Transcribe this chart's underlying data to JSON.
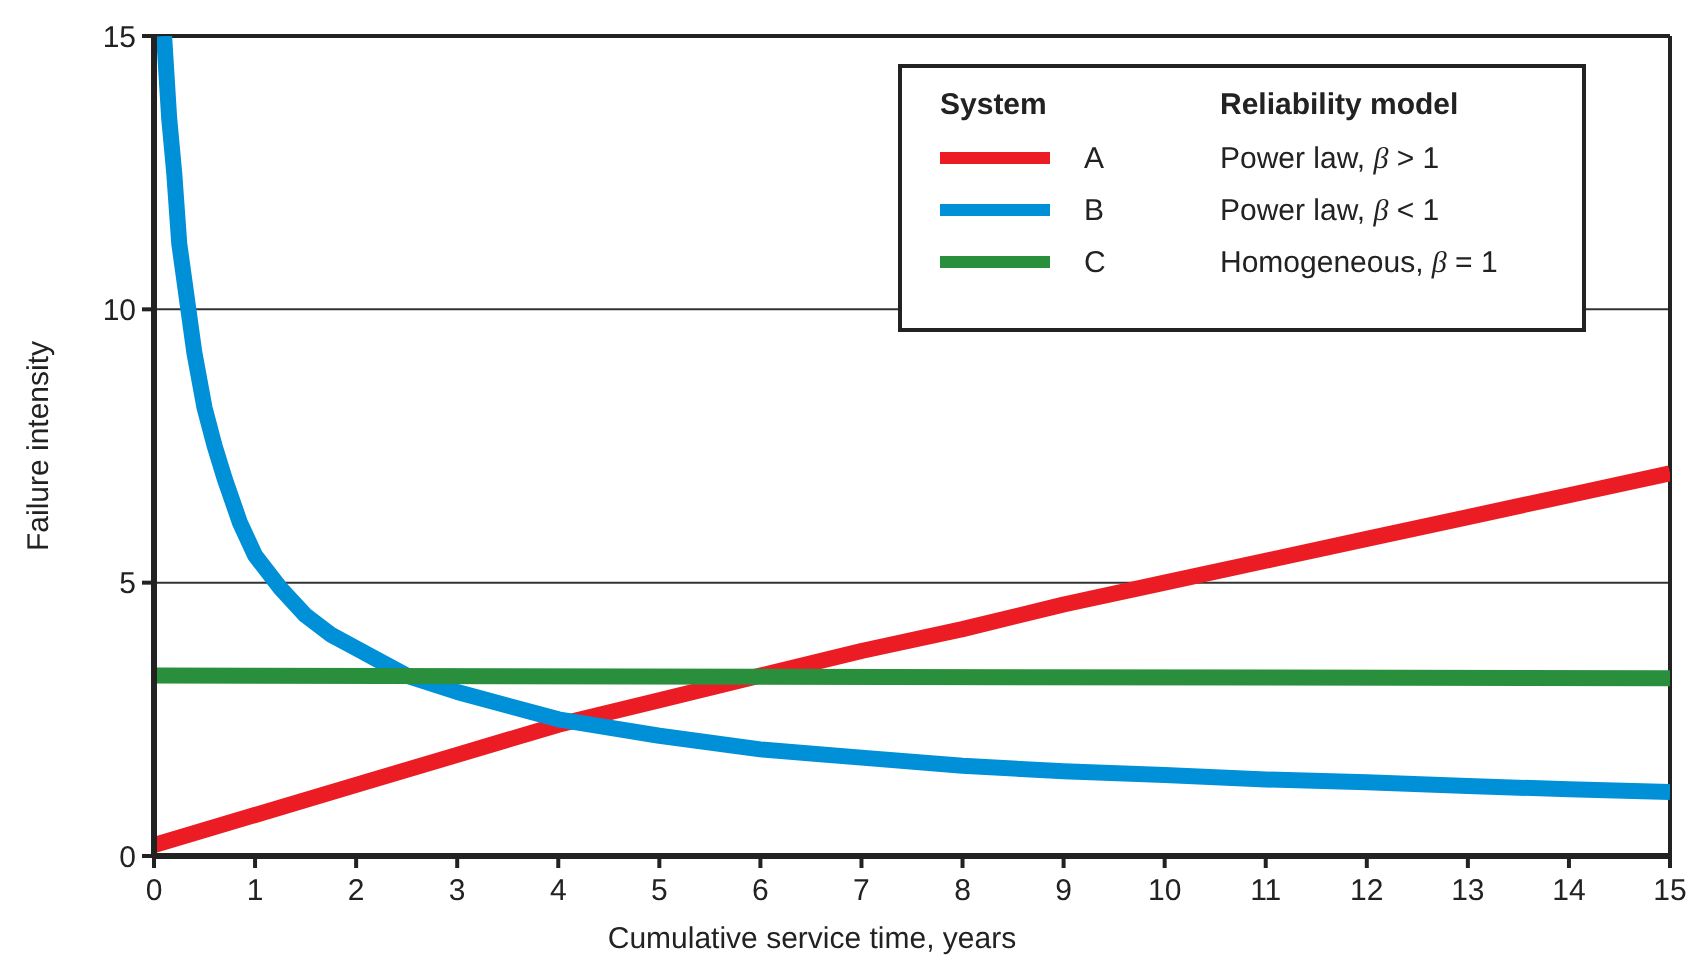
{
  "chart_data": {
    "type": "line",
    "xlabel": "Cumulative service time, years",
    "ylabel": "Failure intensity",
    "legend_title": "System",
    "legend": "top right",
    "grid": "y",
    "line_style": "solid",
    "marker": "none",
    "xlim": [
      0,
      15
    ],
    "xticks": [
      0,
      1,
      2,
      3,
      4,
      5,
      6,
      7,
      8,
      9,
      10,
      11,
      12,
      13,
      14,
      15
    ],
    "ylim": [
      0,
      15
    ],
    "yticks": [
      0,
      5,
      10,
      15
    ],
    "annotations": [
      "Reliability model",
      "Power law, β > 1",
      "Power law, β < 1",
      "Homogeneous, β = 1"
    ],
    "series": [
      {
        "name": "A",
        "color": "#ec1c24",
        "x": [
          0,
          1,
          2,
          3,
          4,
          5,
          6,
          7,
          8,
          9,
          10,
          11,
          12,
          13,
          14,
          15
        ],
        "values": [
          0.2,
          0.75,
          1.3,
          1.85,
          2.4,
          2.85,
          3.3,
          3.75,
          4.15,
          4.6,
          5.0,
          5.4,
          5.8,
          6.2,
          6.6,
          7.0
        ]
      },
      {
        "name": "B",
        "color": "#0090d8",
        "x": [
          0.1,
          0.15,
          0.2,
          0.25,
          0.34,
          0.4,
          0.5,
          0.6,
          0.7,
          0.85,
          1.0,
          1.25,
          1.5,
          1.75,
          2,
          2.5,
          3,
          4,
          5,
          6,
          7,
          8,
          9,
          10,
          11,
          12,
          13,
          14,
          15
        ],
        "values": [
          15,
          13.5,
          12.5,
          11.2,
          10,
          9.2,
          8.2,
          7.5,
          6.9,
          6.1,
          5.5,
          4.9,
          4.4,
          4.05,
          3.8,
          3.3,
          3.0,
          2.5,
          2.2,
          1.95,
          1.8,
          1.65,
          1.55,
          1.48,
          1.4,
          1.35,
          1.28,
          1.22,
          1.17
        ]
      },
      {
        "name": "C",
        "color": "#2a8f3c",
        "x": [
          0,
          15
        ],
        "values": [
          3.3,
          3.25
        ]
      }
    ]
  }
}
